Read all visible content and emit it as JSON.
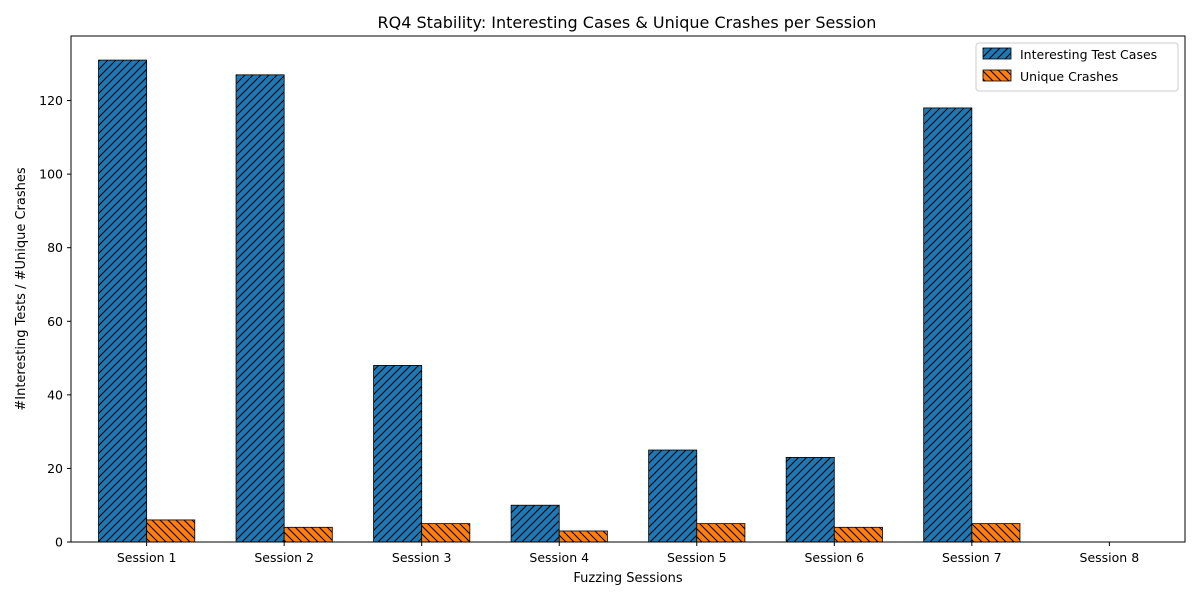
{
  "chart_data": {
    "type": "bar",
    "title": "RQ4 Stability: Interesting Cases & Unique Crashes per Session",
    "xlabel": "Fuzzing Sessions",
    "ylabel": "#Interesting Tests / #Unique Crashes",
    "categories": [
      "Session 1",
      "Session 2",
      "Session 3",
      "Session 4",
      "Session 5",
      "Session 6",
      "Session 7",
      "Session 8"
    ],
    "series": [
      {
        "name": "Interesting Test Cases",
        "values": [
          131,
          127,
          48,
          10,
          25,
          23,
          118,
          0
        ],
        "color": "#1f77b4",
        "hatch": "forward-diagonal"
      },
      {
        "name": "Unique Crashes",
        "values": [
          6,
          4,
          5,
          3,
          5,
          4,
          5,
          0
        ],
        "color": "#ff7f0e",
        "hatch": "backward-diagonal"
      }
    ],
    "ylim": [
      0,
      137.55
    ],
    "yticks": [
      0,
      20,
      40,
      60,
      80,
      100,
      120
    ],
    "grid": false,
    "legend_position": "top-right"
  }
}
